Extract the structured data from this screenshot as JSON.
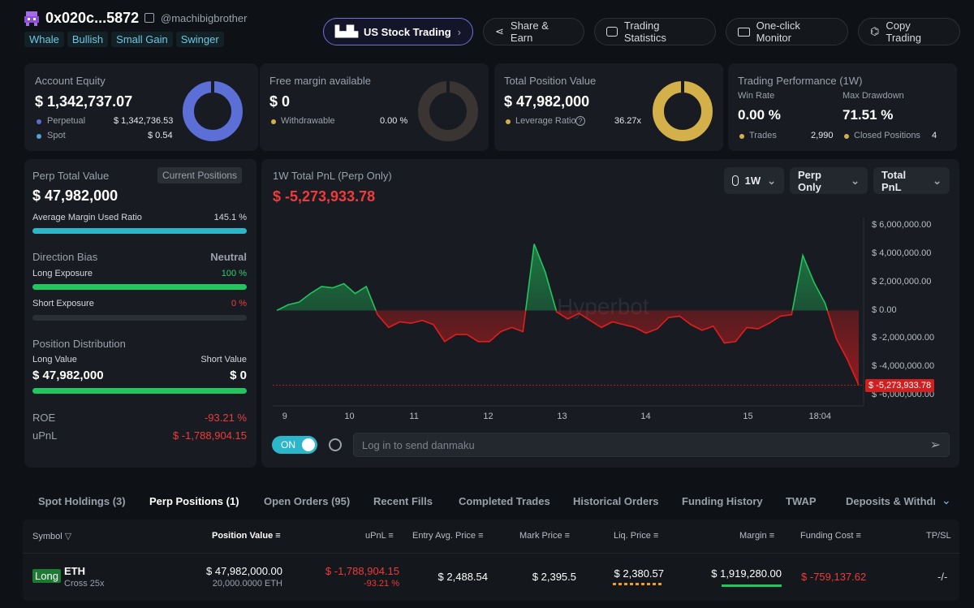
{
  "header": {
    "address": "0x020c...5872",
    "username": "@machibigbrother",
    "tags": [
      "Whale",
      "Bullish",
      "Small Gain",
      "Swinger"
    ],
    "buttons": {
      "us_stock": "US Stock Trading",
      "share": "Share & Earn",
      "stats": "Trading Statistics",
      "monitor": "One-click Monitor",
      "copy": "Copy Trading"
    }
  },
  "equity": {
    "label": "Account Equity",
    "value": "$ 1,342,737.07",
    "perp_label": "Perpetual",
    "perp_value": "$ 1,342,736.53",
    "spot_label": "Spot",
    "spot_value": "$ 0.54"
  },
  "margin": {
    "label": "Free margin available",
    "value": "$ 0",
    "withdrawable_label": "Withdrawable",
    "withdrawable_value": "0.00 %"
  },
  "position_value": {
    "label": "Total Position Value",
    "value": "$ 47,982,000",
    "leverage_label": "Leverage Ratio",
    "leverage_value": "36.27x"
  },
  "performance": {
    "label": "Trading Performance (1W)",
    "win_rate_label": "Win Rate",
    "win_rate": "0.00 %",
    "drawdown_label": "Max Drawdown",
    "drawdown": "71.51 %",
    "trades_label": "Trades",
    "trades": "2,990",
    "closed_label": "Closed Positions",
    "closed": "4"
  },
  "perp_panel": {
    "title": "Perp Total Value",
    "current_positions": "Current Positions",
    "value": "$ 47,982,000",
    "avg_margin_label": "Average Margin Used Ratio",
    "avg_margin_value": "145.1 %",
    "avg_margin_ratio": 1.0,
    "bias_label": "Direction Bias",
    "bias_value": "Neutral",
    "long_exp_label": "Long Exposure",
    "long_exp_value": "100 %",
    "long_exp_ratio": 1.0,
    "short_exp_label": "Short Exposure",
    "short_exp_value": "0 %",
    "short_exp_ratio": 0,
    "dist_label": "Position Distribution",
    "long_value_label": "Long Value",
    "short_value_label": "Short Value",
    "long_value": "$ 47,982,000",
    "short_value": "$ 0",
    "roe_label": "ROE",
    "roe_value": "-93.21 %",
    "upnl_label": "uPnL",
    "upnl_value": "$ -1,788,904.15"
  },
  "chart_panel": {
    "title": "1W Total PnL (Perp Only)",
    "pnl": "$ -5,273,933.78",
    "period": "1W",
    "filter": "Perp Only",
    "metric": "Total PnL",
    "watermark": "Hyperbot",
    "toggle": "ON",
    "danmaku_placeholder": "Log in to send danmaku",
    "current_label": "$ -5,273,933.78"
  },
  "chart_data": {
    "type": "area",
    "ylim": [
      -6000000,
      6000000
    ],
    "yticks": [
      "$ 6,000,000.00",
      "$ 4,000,000.00",
      "$ 2,000,000.00",
      "$ 0.00",
      "$ -2,000,000.00",
      "$ -4,000,000.00",
      "$ -6,000,000.00"
    ],
    "xticks": [
      "9",
      "10",
      "11",
      "12",
      "13",
      "14",
      "15",
      "18:04"
    ],
    "x": [
      0,
      1,
      2,
      3,
      4,
      5,
      6,
      7,
      8,
      9,
      10,
      11,
      12,
      13,
      14,
      15,
      16,
      17,
      18,
      19,
      20,
      21,
      22,
      23,
      24,
      25,
      26,
      27,
      28,
      29,
      30,
      31,
      32,
      33,
      34,
      35,
      36,
      37,
      38,
      39,
      40,
      41,
      42,
      43,
      44,
      45,
      46,
      47,
      48,
      49,
      50,
      51,
      52
    ],
    "values": [
      0,
      400000,
      600000,
      1200000,
      1700000,
      1600000,
      1900000,
      1200000,
      1700000,
      -300000,
      -1200000,
      -800000,
      -900000,
      -700000,
      -1000000,
      -2200000,
      -1700000,
      -1700000,
      -2200000,
      -2200000,
      -1500000,
      -1200000,
      -1500000,
      4700000,
      2700000,
      -100000,
      -600000,
      -200000,
      -700000,
      -1200000,
      -800000,
      -1000000,
      -1200000,
      -1600000,
      -1300000,
      -500000,
      -400000,
      -1000000,
      -1400000,
      -1100000,
      -2300000,
      -2200000,
      -1200000,
      -1300000,
      -900000,
      -400000,
      -300000,
      3900000,
      2000000,
      500000,
      -2000000,
      -3500000,
      -5273933
    ]
  },
  "tabs": [
    "Spot Holdings (3)",
    "Perp Positions (1)",
    "Open Orders (95)",
    "Recent Fills",
    "Completed Trades",
    "Historical Orders",
    "Funding History",
    "TWAP",
    "Deposits & Withdra"
  ],
  "table": {
    "headers": [
      "Symbol",
      "Position Value",
      "uPnL",
      "Entry Avg. Price",
      "Mark Price",
      "Liq. Price",
      "Margin",
      "Funding Cost",
      "TP/SL"
    ],
    "row": {
      "side": "Long",
      "symbol": "ETH",
      "mode": "Cross 25x",
      "position_value": "$ 47,982,000.00",
      "position_size": "20,000.0000 ETH",
      "upnl": "$ -1,788,904.15",
      "upnl_pct": "-93.21 %",
      "entry": "$ 2,488.54",
      "mark": "$ 2,395.5",
      "liq": "$ 2,380.57",
      "margin": "$ 1,919,280.00",
      "funding": "$ -759,137.62",
      "tpsl": "-/-"
    }
  },
  "colors": {
    "equity_donut": "#5b6fd6",
    "margin_donut": "#3a3532",
    "position_donut": "#d4b04a",
    "positive": "#2ecc71",
    "negative": "#ee3b3b",
    "accent": "#2bb6c9"
  }
}
